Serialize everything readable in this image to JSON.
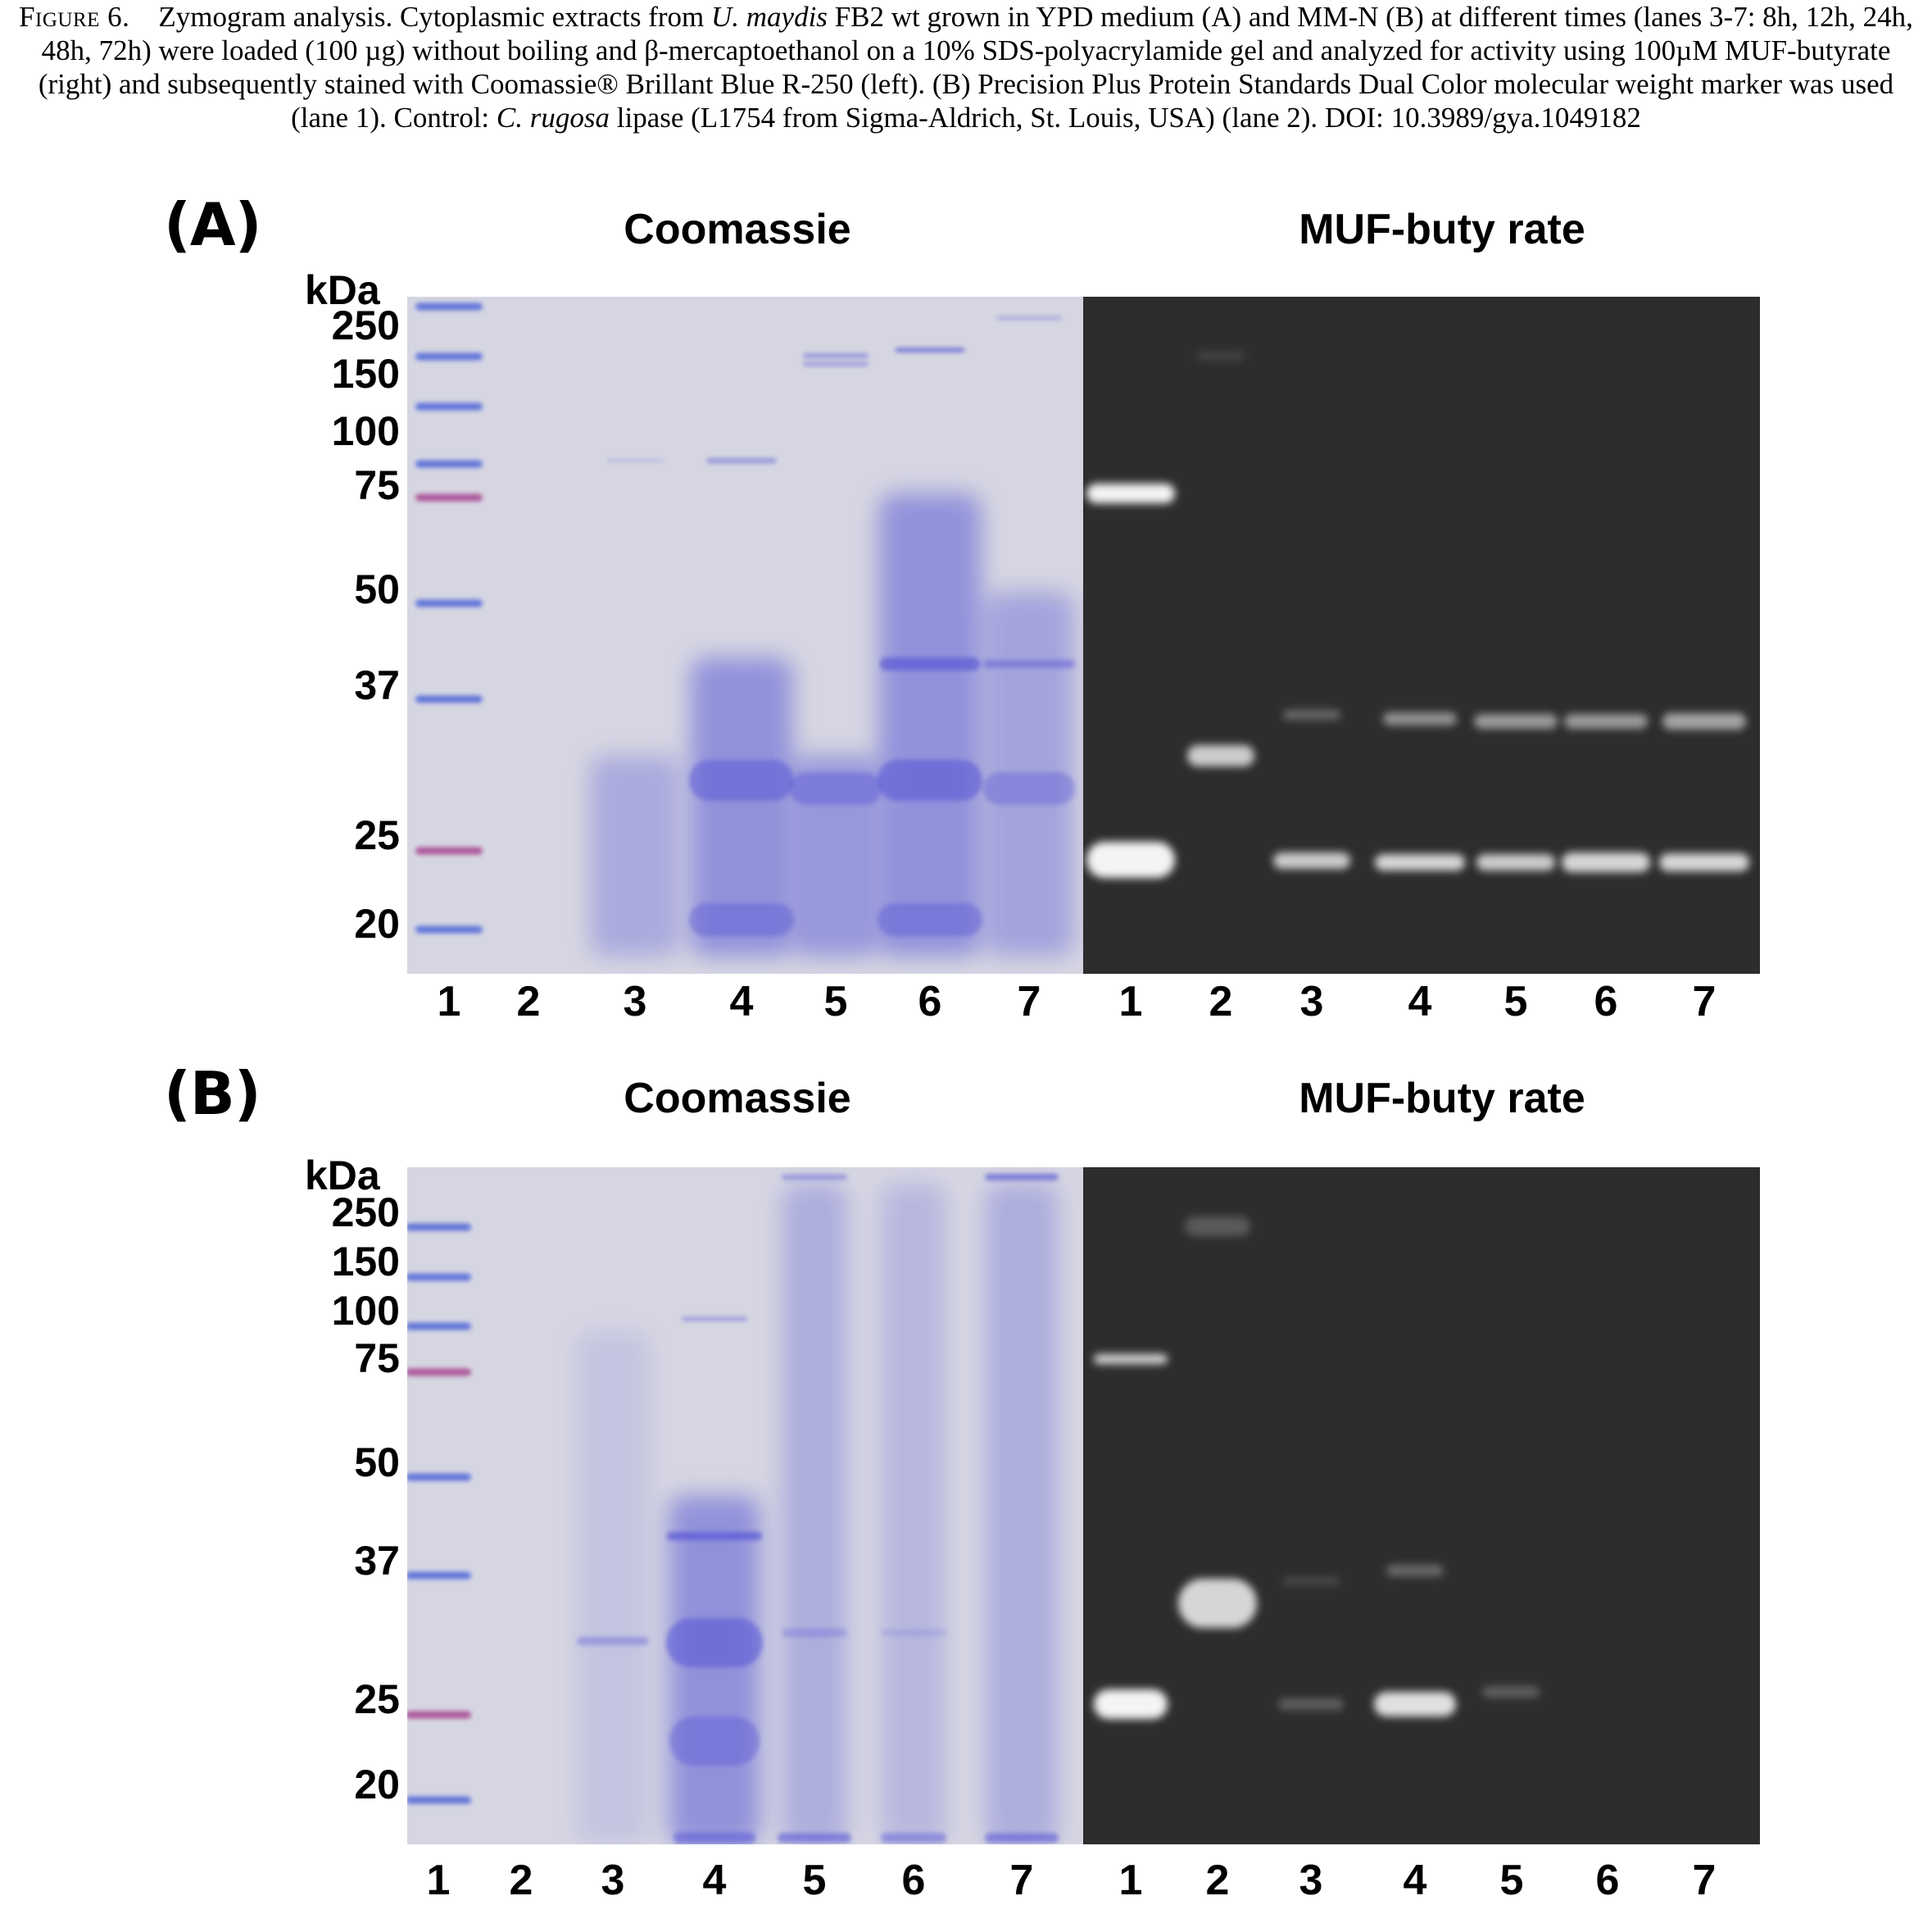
{
  "caption": {
    "figure_label": "Figure 6.",
    "parts": [
      {
        "t": "Zymogram analysis. Cytoplasmic extracts from ",
        "i": false
      },
      {
        "t": "U. maydis",
        "i": true
      },
      {
        "t": " FB2 wt grown in YPD medium (A) and MM-N (B) at different times (lanes 3-7: 8h, 12h, 24h, 48h, 72h) were loaded (100 µg) without boiling and β-mercaptoethanol on a 10% SDS-polyacrylamide gel and analyzed for activity using 100µM MUF-butyrate (right) and subsequently stained with Coomassie® Brillant Blue R-250 (left). (B) Precision Plus Protein Standards Dual Color molecular weight marker was used (lane 1). Control: ",
        "i": false
      },
      {
        "t": "C. rugosa",
        "i": true
      },
      {
        "t": " lipase (L1754 from Sigma-Aldrich, St. Louis, USA) (lane 2). DOI: 10.3989/gya.1049182",
        "i": false
      }
    ]
  },
  "panels": [
    {
      "label": "(A)",
      "left_title": "Coomassie",
      "right_title": "MUF-buty rate",
      "kda_label": "kDa",
      "markers": [
        "250",
        "150",
        "100",
        "75",
        "50",
        "37",
        "25",
        "20"
      ],
      "lanes_left": [
        "1",
        "2",
        "3",
        "4",
        "5",
        "6",
        "7"
      ],
      "lanes_right": [
        "1",
        "2",
        "3",
        "4",
        "5",
        "6",
        "7"
      ]
    },
    {
      "label": "(B)",
      "left_title": "Coomassie",
      "right_title": "MUF-buty rate",
      "kda_label": "kDa",
      "markers": [
        "250",
        "150",
        "100",
        "75",
        "50",
        "37",
        "25",
        "20"
      ],
      "lanes_left": [
        "1",
        "2",
        "3",
        "4",
        "5",
        "6",
        "7"
      ],
      "lanes_right": [
        "1",
        "2",
        "3",
        "4",
        "5",
        "6",
        "7"
      ]
    }
  ],
  "colors": {
    "coomassie_background": "#d6d6e2",
    "coomassie_stain": "#5a5ad6",
    "marker_blue": "#4c64d8",
    "marker_pink": "#a4408c",
    "zymogram_background": "#2d2d2d",
    "fluorescence": "#f4f4f4"
  }
}
